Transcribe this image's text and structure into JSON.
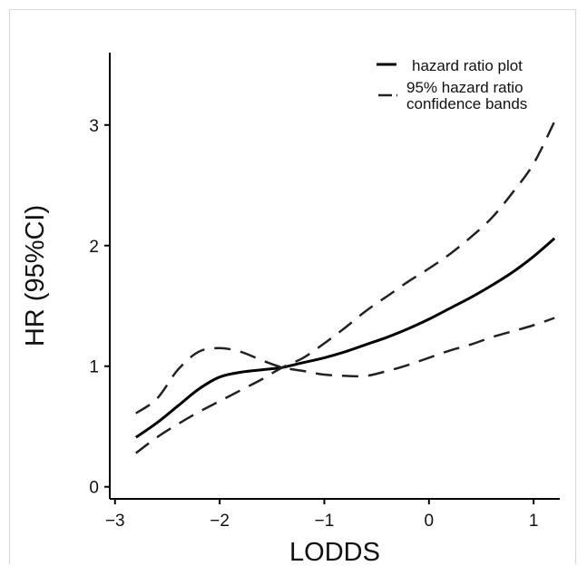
{
  "chart_data": {
    "type": "line",
    "title": "",
    "xlabel": "LODDS",
    "ylabel": "HR (95%CI)",
    "xlim": [
      -3.05,
      1.25
    ],
    "ylim": [
      -0.1,
      3.6
    ],
    "xticks": [
      -3,
      -2,
      -1,
      0,
      1
    ],
    "xtick_labels": [
      "−3",
      "−2",
      "−1",
      "0",
      "1"
    ],
    "yticks": [
      0,
      1,
      2,
      3
    ],
    "ytick_labels": [
      "0",
      "1",
      "2",
      "3"
    ],
    "grid": false,
    "legend_position": "top-right",
    "series": [
      {
        "name": "hazard ratio plot",
        "style": "solid",
        "color": "#000000",
        "x": [
          -2.8,
          -2.6,
          -2.4,
          -2.2,
          -2.0,
          -1.8,
          -1.6,
          -1.4,
          -1.2,
          -1.0,
          -0.8,
          -0.6,
          -0.4,
          -0.2,
          0.0,
          0.2,
          0.4,
          0.6,
          0.8,
          1.0,
          1.2
        ],
        "y": [
          0.41,
          0.53,
          0.67,
          0.81,
          0.91,
          0.95,
          0.97,
          0.99,
          1.03,
          1.07,
          1.12,
          1.18,
          1.24,
          1.31,
          1.39,
          1.48,
          1.57,
          1.67,
          1.78,
          1.91,
          2.06
        ]
      },
      {
        "name": "95% hazard ratio confidence bands",
        "style": "dashed",
        "color": "#222222",
        "x": [
          -2.8,
          -2.6,
          -2.4,
          -2.2,
          -2.0,
          -1.8,
          -1.6,
          -1.4,
          -1.2,
          -1.0,
          -0.8,
          -0.6,
          -0.4,
          -0.2,
          0.0,
          0.2,
          0.4,
          0.6,
          0.8,
          1.0,
          1.2
        ],
        "y": [
          0.61,
          0.73,
          0.97,
          1.12,
          1.15,
          1.12,
          1.05,
          0.99,
          0.96,
          0.93,
          0.92,
          0.92,
          0.96,
          1.01,
          1.07,
          1.13,
          1.18,
          1.24,
          1.29,
          1.34,
          1.4
        ]
      },
      {
        "name": "95% hazard ratio confidence bands",
        "style": "dashed",
        "color": "#222222",
        "x": [
          -2.8,
          -2.6,
          -2.4,
          -2.2,
          -2.0,
          -1.8,
          -1.6,
          -1.4,
          -1.2,
          -1.0,
          -0.8,
          -0.6,
          -0.4,
          -0.2,
          0.0,
          0.2,
          0.4,
          0.6,
          0.8,
          1.0,
          1.2
        ],
        "y": [
          0.28,
          0.41,
          0.52,
          0.62,
          0.71,
          0.8,
          0.89,
          0.99,
          1.07,
          1.19,
          1.32,
          1.46,
          1.58,
          1.7,
          1.81,
          1.93,
          2.07,
          2.23,
          2.44,
          2.68,
          3.03
        ]
      }
    ],
    "legend": [
      {
        "style": "solid",
        "label": "hazard ratio plot"
      },
      {
        "style": "dashed",
        "label_lines": [
          "95% hazard ratio",
          "confidence bands"
        ]
      }
    ]
  }
}
